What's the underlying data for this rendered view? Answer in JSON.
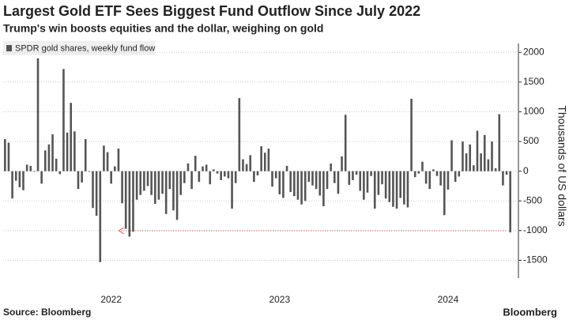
{
  "chart_data": {
    "type": "bar",
    "title": "Largest Gold ETF Sees Biggest Fund Outflow Since July 2022",
    "subtitle": "Trump's win boosts equities and the dollar, weighing on gold",
    "y_label": "Thousands of US dollars",
    "source": "Source: Bloomberg",
    "logo": "Bloomberg",
    "series": [
      {
        "name": "SPDR gold shares, weekly fund flow",
        "color": "#555555",
        "values": [
          540,
          480,
          -460,
          -160,
          -270,
          -320,
          110,
          90,
          -10,
          1900,
          -210,
          350,
          450,
          620,
          210,
          -50,
          1720,
          650,
          1150,
          670,
          -300,
          -190,
          540,
          -10,
          -620,
          -750,
          -1530,
          430,
          320,
          -210,
          80,
          380,
          -540,
          -970,
          -1100,
          -1020,
          -480,
          -400,
          -330,
          -250,
          -400,
          -550,
          -480,
          -380,
          -720,
          -300,
          -660,
          -820,
          -400,
          -200,
          130,
          -300,
          260,
          -180,
          80,
          110,
          -220,
          30,
          -40,
          -150,
          -90,
          -120,
          -630,
          -200,
          1230,
          200,
          120,
          270,
          -180,
          -70,
          420,
          310,
          380,
          -260,
          -120,
          -390,
          -450,
          90,
          -350,
          -420,
          -480,
          -560,
          -500,
          -180,
          -240,
          -300,
          -410,
          -590,
          -300,
          130,
          -200,
          -380,
          250,
          950,
          -230,
          -150,
          -60,
          -330,
          -480,
          -360,
          -80,
          -630,
          -400,
          -220,
          -460,
          -520,
          -600,
          -630,
          -450,
          -560,
          -610,
          1220,
          -100,
          -40,
          160,
          -210,
          -300,
          30,
          -80,
          -240,
          -740,
          -310,
          520,
          -180,
          -90,
          500,
          300,
          450,
          100,
          680,
          300,
          610,
          200,
          500,
          50,
          960,
          -240,
          -60,
          -1030
        ]
      }
    ],
    "categories": [
      null,
      null,
      null,
      null,
      null,
      null,
      null,
      null,
      null,
      null,
      null,
      null,
      null,
      null,
      null,
      null,
      null,
      null,
      null,
      null,
      null,
      null,
      null,
      null,
      null,
      null,
      null,
      null,
      null,
      "2022",
      null,
      null,
      null,
      null,
      null,
      null,
      null,
      null,
      null,
      null,
      null,
      null,
      null,
      null,
      null,
      null,
      null,
      null,
      null,
      null,
      null,
      null,
      null,
      null,
      null,
      null,
      null,
      null,
      null,
      null,
      null,
      null,
      null,
      null,
      null,
      null,
      null,
      null,
      null,
      null,
      null,
      null,
      null,
      null,
      null,
      "2023",
      null,
      null,
      null,
      null,
      null,
      null,
      null,
      null,
      null,
      null,
      null,
      null,
      null,
      null,
      null,
      null,
      null,
      null,
      null,
      null,
      null,
      null,
      null,
      null,
      null,
      null,
      null,
      null,
      null,
      null,
      null,
      null,
      null,
      null,
      null,
      null,
      null,
      null,
      null,
      null,
      null,
      null,
      null,
      null,
      null,
      "2024",
      null,
      null,
      null,
      null,
      null,
      null,
      null,
      null,
      null,
      null,
      null,
      null,
      null,
      null,
      null,
      null,
      null
    ],
    "ylim": [
      -1800,
      2150
    ],
    "yticks": [
      -1500,
      -1000,
      -500,
      0,
      500,
      1000,
      1500,
      2000
    ],
    "grid": true
  }
}
